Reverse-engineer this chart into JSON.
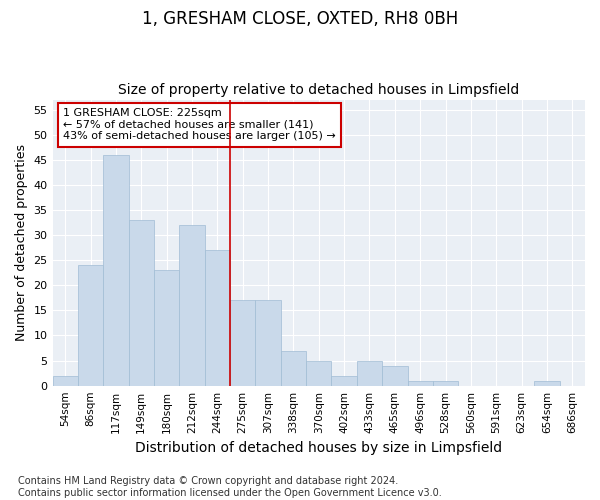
{
  "title": "1, GRESHAM CLOSE, OXTED, RH8 0BH",
  "subtitle": "Size of property relative to detached houses in Limpsfield",
  "xlabel": "Distribution of detached houses by size in Limpsfield",
  "ylabel": "Number of detached properties",
  "categories": [
    "54sqm",
    "86sqm",
    "117sqm",
    "149sqm",
    "180sqm",
    "212sqm",
    "244sqm",
    "275sqm",
    "307sqm",
    "338sqm",
    "370sqm",
    "402sqm",
    "433sqm",
    "465sqm",
    "496sqm",
    "528sqm",
    "560sqm",
    "591sqm",
    "623sqm",
    "654sqm",
    "686sqm"
  ],
  "values": [
    2,
    24,
    46,
    33,
    23,
    32,
    27,
    17,
    17,
    7,
    5,
    2,
    5,
    4,
    1,
    1,
    0,
    0,
    0,
    1,
    0
  ],
  "bar_color": "#c9d9ea",
  "bar_edge_color": "#a0bcd4",
  "highlight_line_index": 6,
  "highlight_line_color": "#cc0000",
  "annotation_text": "1 GRESHAM CLOSE: 225sqm\n← 57% of detached houses are smaller (141)\n43% of semi-detached houses are larger (105) →",
  "annotation_box_color": "#ffffff",
  "annotation_box_edgecolor": "#cc0000",
  "ylim": [
    0,
    57
  ],
  "yticks": [
    0,
    5,
    10,
    15,
    20,
    25,
    30,
    35,
    40,
    45,
    50,
    55
  ],
  "footer": "Contains HM Land Registry data © Crown copyright and database right 2024.\nContains public sector information licensed under the Open Government Licence v3.0.",
  "title_fontsize": 12,
  "subtitle_fontsize": 10,
  "xlabel_fontsize": 10,
  "ylabel_fontsize": 9,
  "footer_fontsize": 7,
  "background_color": "#eaeff5",
  "grid_color": "#ffffff"
}
